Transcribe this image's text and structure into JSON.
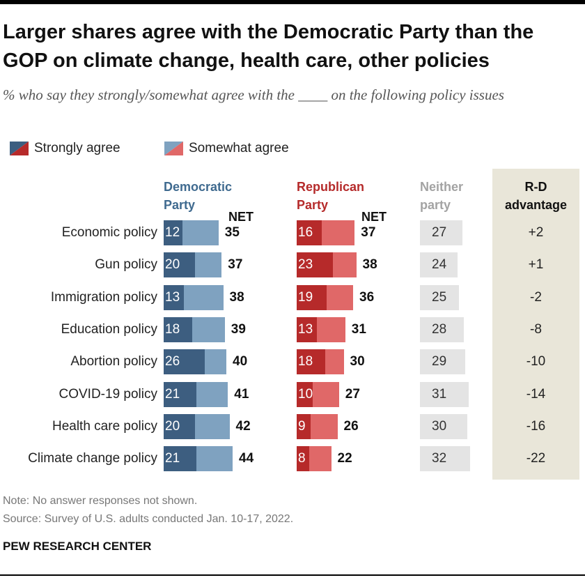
{
  "title": "Larger shares agree with the Democratic Party than the GOP on climate change, health care, other policies",
  "subtitle": "% who say they strongly/somewhat agree with the ____ on the following policy issues",
  "legend": [
    {
      "label": "Strongly agree"
    },
    {
      "label": "Somewhat agree"
    }
  ],
  "headers": {
    "dem_line1": "Democratic",
    "dem_line2": "Party",
    "rep_line1": "Republican",
    "rep_line2": "Party",
    "net": "NET",
    "neither_line1": "Neither",
    "neither_line2": "party",
    "rd_line1": "R-D",
    "rd_line2": "advantage"
  },
  "colors": {
    "dem_strong": "#3d5e80",
    "dem_somewhat": "#7fa2c0",
    "rep_strong": "#b62a2a",
    "rep_somewhat": "#e06868",
    "neither": "#e4e4e4",
    "rd_panel": "#e9e6d9",
    "dem_text": "#3f6a8f",
    "rep_text": "#b52a2a",
    "neither_text": "#a3a3a3"
  },
  "chart_data": {
    "type": "bar",
    "orientation": "horizontal",
    "stacked": true,
    "categories": [
      "Economic policy",
      "Gun policy",
      "Immigration policy",
      "Education policy",
      "Abortion policy",
      "COVID-19 policy",
      "Health care policy",
      "Climate change policy"
    ],
    "series": [
      {
        "name": "Democratic Party - Strongly agree",
        "values": [
          12,
          20,
          13,
          18,
          26,
          21,
          20,
          21
        ]
      },
      {
        "name": "Democratic Party - NET",
        "values": [
          35,
          37,
          38,
          39,
          40,
          41,
          42,
          44
        ]
      },
      {
        "name": "Republican Party - Strongly agree",
        "values": [
          16,
          23,
          19,
          13,
          18,
          10,
          9,
          8
        ]
      },
      {
        "name": "Republican Party - NET",
        "values": [
          37,
          38,
          36,
          31,
          30,
          27,
          26,
          22
        ]
      },
      {
        "name": "Neither party",
        "values": [
          27,
          24,
          25,
          28,
          29,
          31,
          30,
          32
        ]
      },
      {
        "name": "R-D advantage",
        "values": [
          "+2",
          "+1",
          "-2",
          "-8",
          "-10",
          "-14",
          "-16",
          "-22"
        ]
      }
    ],
    "title": "Larger shares agree with the Democratic Party than the GOP on climate change, health care, other policies",
    "xlabel": "",
    "ylabel": ""
  },
  "footer": {
    "note": "Note: No answer responses not shown.",
    "source": "Source: Survey of U.S. adults conducted Jan. 10-17, 2022.",
    "brand": "PEW RESEARCH CENTER"
  }
}
